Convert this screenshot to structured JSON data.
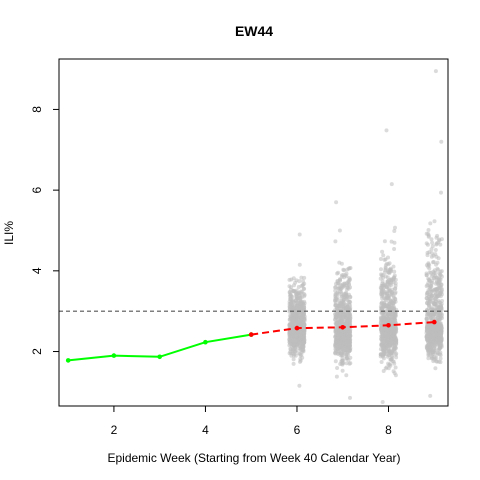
{
  "chart_data": {
    "type": "scatter",
    "title": "EW44",
    "xlabel": "Epidemic Week (Starting from Week 40 Calendar Year)",
    "ylabel": "ILI%",
    "xlim": [
      0.8,
      9.3
    ],
    "ylim": [
      0.65,
      9.25
    ],
    "xticks": [
      2,
      4,
      6,
      8
    ],
    "yticks": [
      2,
      4,
      6,
      8
    ],
    "threshold": 3.0,
    "observed": {
      "color": "#00ff00",
      "x": [
        1,
        2,
        3,
        4,
        5
      ],
      "y": [
        1.78,
        1.9,
        1.87,
        2.23,
        2.42
      ]
    },
    "forecast_median": {
      "color": "#ff0000",
      "x": [
        5,
        6,
        7,
        8,
        9
      ],
      "y": [
        2.42,
        2.58,
        2.6,
        2.65,
        2.73
      ]
    },
    "simulations": {
      "color": "#bebebe",
      "weeks": [
        {
          "x": 6,
          "min": 1.15,
          "max": 4.9,
          "center": 2.6,
          "outliers": []
        },
        {
          "x": 7,
          "min": 0.85,
          "max": 5.7,
          "center": 2.55,
          "outliers": []
        },
        {
          "x": 8,
          "min": 0.75,
          "max": 6.15,
          "center": 2.6,
          "outliers": [
            7.48
          ]
        },
        {
          "x": 9,
          "min": 0.9,
          "max": 7.2,
          "center": 2.65,
          "outliers": [
            8.95
          ]
        }
      ]
    }
  }
}
